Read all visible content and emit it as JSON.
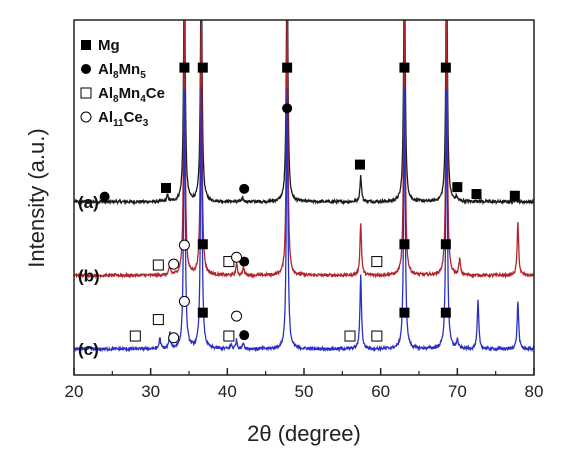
{
  "chart_data": {
    "type": "line",
    "title": "",
    "xlabel": "2θ (degree)",
    "ylabel": "Intensity (a.u.)",
    "xlim": [
      20,
      80
    ],
    "x_ticks": [
      "20",
      "30",
      "40",
      "50",
      "60",
      "70",
      "80"
    ],
    "y_ticks": "none",
    "legend": {
      "placement": "top-left",
      "entries": [
        {
          "marker": "filled-square",
          "label": "Mg"
        },
        {
          "marker": "filled-circle",
          "label": "Al",
          "sub": "8",
          "label2": "Mn",
          "sub2": "5"
        },
        {
          "marker": "open-square",
          "label": "Al",
          "sub": "8",
          "label2": "Mn",
          "sub2": "4",
          "label3": "Ce"
        },
        {
          "marker": "open-circle",
          "label": "Al",
          "sub": "11",
          "label2": "Ce",
          "sub2": "3"
        }
      ]
    },
    "series": [
      {
        "label": "(a)",
        "color": "#1a1a1a",
        "baseline": 0.0,
        "peaks": [
          [
            32.2,
            0.07
          ],
          [
            34.4,
            3.0
          ],
          [
            36.6,
            3.0
          ],
          [
            42.0,
            0.04
          ],
          [
            47.8,
            3.0
          ],
          [
            57.4,
            0.3
          ],
          [
            63.1,
            3.0
          ],
          [
            68.6,
            3.0
          ],
          [
            69.9,
            0.05
          ],
          [
            72.5,
            0.02
          ],
          [
            77.6,
            0.03
          ]
        ],
        "markers": [
          {
            "type": "filled-square",
            "x": 32.0,
            "y": 0.16
          },
          {
            "type": "filled-square",
            "x": 34.4,
            "y": 1.55
          },
          {
            "type": "filled-square",
            "x": 36.8,
            "y": 1.55
          },
          {
            "type": "filled-square",
            "x": 47.8,
            "y": 1.55
          },
          {
            "type": "filled-square",
            "x": 57.3,
            "y": 0.43
          },
          {
            "type": "filled-square",
            "x": 63.1,
            "y": 1.55
          },
          {
            "type": "filled-square",
            "x": 68.5,
            "y": 1.55
          },
          {
            "type": "filled-square",
            "x": 70.0,
            "y": 0.17
          },
          {
            "type": "filled-square",
            "x": 72.5,
            "y": 0.09
          },
          {
            "type": "filled-square",
            "x": 77.5,
            "y": 0.07
          },
          {
            "type": "filled-circle",
            "x": 24.0,
            "y": 0.06
          },
          {
            "type": "filled-circle",
            "x": 42.2,
            "y": 0.15
          },
          {
            "type": "filled-circle",
            "x": 47.8,
            "y": 1.08
          }
        ]
      },
      {
        "label": "(b)",
        "color": "#b0262b",
        "baseline": -0.85,
        "peaks": [
          [
            32.5,
            0.1
          ],
          [
            34.4,
            3.0
          ],
          [
            36.6,
            3.0
          ],
          [
            41.2,
            0.13
          ],
          [
            42.1,
            0.09
          ],
          [
            47.8,
            3.0
          ],
          [
            57.4,
            0.6
          ],
          [
            63.1,
            3.0
          ],
          [
            68.6,
            3.0
          ],
          [
            70.3,
            0.18
          ],
          [
            77.9,
            0.6
          ]
        ],
        "markers": [
          {
            "type": "filled-square",
            "x": 36.8,
            "y": -0.49
          },
          {
            "type": "filled-square",
            "x": 63.1,
            "y": -0.49
          },
          {
            "type": "filled-square",
            "x": 68.5,
            "y": -0.49
          },
          {
            "type": "filled-circle",
            "x": 42.2,
            "y": -0.69
          },
          {
            "type": "open-square",
            "x": 31.0,
            "y": -0.73
          },
          {
            "type": "open-square",
            "x": 40.2,
            "y": -0.69
          },
          {
            "type": "open-square",
            "x": 59.5,
            "y": -0.69
          },
          {
            "type": "open-circle",
            "x": 33.0,
            "y": -0.72
          },
          {
            "type": "open-circle",
            "x": 34.4,
            "y": -0.5
          },
          {
            "type": "open-circle",
            "x": 41.2,
            "y": -0.64
          }
        ]
      },
      {
        "label": "(c)",
        "color": "#2b30c4",
        "baseline": -1.7,
        "peaks": [
          [
            31.2,
            0.12
          ],
          [
            32.5,
            0.18
          ],
          [
            34.4,
            3.0
          ],
          [
            36.6,
            3.0
          ],
          [
            40.5,
            0.05
          ],
          [
            41.2,
            0.1
          ],
          [
            42.1,
            0.07
          ],
          [
            47.8,
            3.0
          ],
          [
            57.4,
            0.85
          ],
          [
            63.1,
            3.0
          ],
          [
            68.6,
            3.0
          ],
          [
            70.0,
            0.1
          ],
          [
            72.7,
            0.55
          ],
          [
            77.9,
            0.55
          ]
        ],
        "markers": [
          {
            "type": "filled-square",
            "x": 36.8,
            "y": -1.28
          },
          {
            "type": "filled-square",
            "x": 63.1,
            "y": -1.28
          },
          {
            "type": "filled-square",
            "x": 68.5,
            "y": -1.28
          },
          {
            "type": "filled-circle",
            "x": 42.2,
            "y": -1.54
          },
          {
            "type": "open-square",
            "x": 28.0,
            "y": -1.55
          },
          {
            "type": "open-square",
            "x": 31.0,
            "y": -1.36
          },
          {
            "type": "open-square",
            "x": 40.2,
            "y": -1.55
          },
          {
            "type": "open-square",
            "x": 56.0,
            "y": -1.55
          },
          {
            "type": "open-square",
            "x": 59.5,
            "y": -1.55
          },
          {
            "type": "open-circle",
            "x": 33.0,
            "y": -1.57
          },
          {
            "type": "open-circle",
            "x": 34.4,
            "y": -1.15
          },
          {
            "type": "open-circle",
            "x": 41.2,
            "y": -1.32
          }
        ]
      }
    ]
  }
}
